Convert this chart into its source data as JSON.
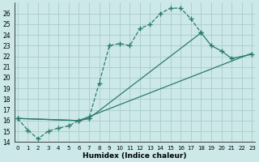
{
  "xlabel": "Humidex (Indice chaleur)",
  "bg_color": "#cce8e8",
  "grid_color": "#aacccc",
  "line_color": "#2a7a6a",
  "xlim": [
    0,
    23
  ],
  "ylim": [
    14,
    27
  ],
  "yticks": [
    14,
    15,
    16,
    17,
    18,
    19,
    20,
    21,
    22,
    23,
    24,
    25,
    26
  ],
  "xticks": [
    0,
    1,
    2,
    3,
    4,
    5,
    6,
    7,
    8,
    9,
    10,
    11,
    12,
    13,
    14,
    15,
    16,
    17,
    18,
    19,
    20,
    21,
    22,
    23
  ],
  "line1_x": [
    0,
    1,
    2,
    3,
    4,
    5,
    6,
    7,
    8,
    9,
    10,
    11,
    12,
    13,
    14,
    15,
    16,
    17,
    18
  ],
  "line1_y": [
    16.2,
    15.1,
    14.3,
    15.0,
    15.3,
    15.5,
    16.0,
    16.2,
    19.5,
    23.0,
    23.2,
    23.0,
    24.6,
    25.0,
    26.0,
    26.5,
    26.5,
    25.5,
    24.2
  ],
  "line2_x": [
    0,
    6,
    7,
    18,
    19,
    20,
    21,
    23
  ],
  "line2_y": [
    16.2,
    16.0,
    16.2,
    24.2,
    23.0,
    22.5,
    21.8,
    22.2
  ],
  "line3_x": [
    0,
    6,
    23
  ],
  "line3_y": [
    16.2,
    16.0,
    22.3
  ]
}
